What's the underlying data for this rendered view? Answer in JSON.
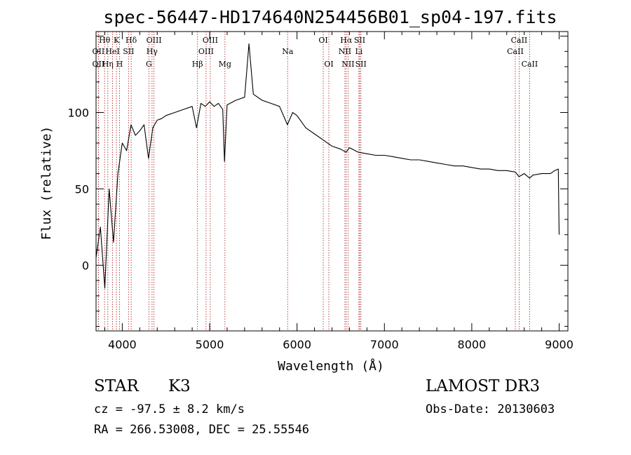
{
  "chart_data": {
    "type": "line",
    "title": "spec-56447-HD174640N254456B01_sp04-197.fits",
    "xlabel": "Wavelength (Å)",
    "ylabel": "Flux (relative)",
    "xlim": [
      3700,
      9100
    ],
    "ylim": [
      -43,
      153
    ],
    "x_ticks": [
      4000,
      5000,
      6000,
      7000,
      8000,
      9000
    ],
    "y_ticks": [
      0,
      50,
      100
    ],
    "grid": false,
    "series": [
      {
        "name": "flux",
        "x": [
          3700,
          3750,
          3800,
          3850,
          3900,
          3950,
          4000,
          4050,
          4100,
          4150,
          4200,
          4250,
          4300,
          4350,
          4400,
          4450,
          4500,
          4600,
          4700,
          4800,
          4850,
          4900,
          4950,
          5000,
          5050,
          5100,
          5150,
          5170,
          5200,
          5300,
          5400,
          5450,
          5500,
          5600,
          5700,
          5800,
          5890,
          5950,
          6000,
          6100,
          6200,
          6300,
          6400,
          6500,
          6563,
          6600,
          6700,
          6800,
          6900,
          7000,
          7100,
          7200,
          7300,
          7400,
          7500,
          7600,
          7700,
          7800,
          7900,
          8000,
          8100,
          8200,
          8300,
          8400,
          8500,
          8540,
          8600,
          8662,
          8700,
          8800,
          8900,
          8950,
          8990,
          9000
        ],
        "y": [
          5,
          25,
          -15,
          50,
          15,
          60,
          80,
          75,
          92,
          85,
          88,
          92,
          70,
          90,
          95,
          96,
          98,
          100,
          102,
          104,
          90,
          106,
          104,
          107,
          104,
          106,
          102,
          68,
          105,
          108,
          110,
          145,
          112,
          108,
          106,
          104,
          92,
          100,
          98,
          90,
          86,
          82,
          78,
          76,
          74,
          77,
          74,
          73,
          72,
          72,
          71,
          70,
          69,
          69,
          68,
          67,
          66,
          65,
          65,
          64,
          63,
          63,
          62,
          62,
          61,
          58,
          60,
          57,
          59,
          60,
          60,
          62,
          63,
          20
        ]
      }
    ],
    "lines": [
      {
        "label": "Hθ",
        "wavelength": 3798,
        "row": 1
      },
      {
        "label": "OII",
        "wavelength": 3727,
        "row": 2
      },
      {
        "label": "OII",
        "wavelength": 3727,
        "row": 3
      },
      {
        "label": "K",
        "wavelength": 3934,
        "row": 1
      },
      {
        "label": "HeI",
        "wavelength": 3889,
        "row": 2
      },
      {
        "label": "Hη",
        "wavelength": 3835,
        "row": 3
      },
      {
        "label": "H",
        "wavelength": 3969,
        "row": 3
      },
      {
        "label": "Hδ",
        "wavelength": 4102,
        "row": 1
      },
      {
        "label": "SII",
        "wavelength": 4072,
        "row": 2
      },
      {
        "label": "OIII",
        "wavelength": 4363,
        "row": 1
      },
      {
        "label": "Hγ",
        "wavelength": 4341,
        "row": 2
      },
      {
        "label": "G",
        "wavelength": 4305,
        "row": 3
      },
      {
        "label": "Hβ",
        "wavelength": 4861,
        "row": 3
      },
      {
        "label": "OIII",
        "wavelength": 5007,
        "row": 1
      },
      {
        "label": "OIII",
        "wavelength": 4959,
        "row": 2
      },
      {
        "label": "Mg",
        "wavelength": 5175,
        "row": 3
      },
      {
        "label": "Na",
        "wavelength": 5893,
        "row": 2
      },
      {
        "label": "OI",
        "wavelength": 6300,
        "row": 1
      },
      {
        "label": "OI",
        "wavelength": 6364,
        "row": 3
      },
      {
        "label": "Hα",
        "wavelength": 6563,
        "row": 1
      },
      {
        "label": "NII",
        "wavelength": 6548,
        "row": 2
      },
      {
        "label": "NII",
        "wavelength": 6584,
        "row": 3
      },
      {
        "label": "SII",
        "wavelength": 6717,
        "row": 1
      },
      {
        "label": "Li",
        "wavelength": 6708,
        "row": 2
      },
      {
        "label": "SII",
        "wavelength": 6731,
        "row": 3
      },
      {
        "label": "CaII",
        "wavelength": 8542,
        "row": 1
      },
      {
        "label": "CaII",
        "wavelength": 8498,
        "row": 2
      },
      {
        "label": "CaII",
        "wavelength": 8662,
        "row": 3
      }
    ]
  },
  "info": {
    "object_class": "STAR",
    "subclass": "K3",
    "survey": "LAMOST DR3",
    "velocity": "cz = -97.5 ± 8.2 km/s",
    "obs_date": "Obs-Date: 20130603",
    "coordinates": "RA = 266.53008, DEC =  25.55546"
  }
}
